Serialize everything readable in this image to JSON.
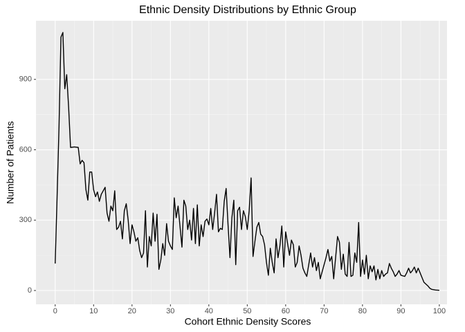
{
  "chart_data": {
    "type": "line",
    "title": "Ethnic Density Distributions by Ethnic Group",
    "x_label": "Cohort Ethnic Density Scores",
    "y_label": "Number of Patients",
    "x": [
      0,
      0.5,
      1,
      1.5,
      2,
      2.5,
      3,
      3.5,
      4,
      5,
      6,
      6.5,
      7,
      7.5,
      8,
      8.5,
      9,
      9.5,
      10,
      10.5,
      11,
      11.5,
      12,
      13,
      13.5,
      14,
      14.5,
      15,
      15.5,
      16,
      16.5,
      17,
      17.5,
      18,
      18.5,
      19,
      19.5,
      20,
      20.5,
      21,
      21.5,
      22,
      22.5,
      23,
      23.5,
      24,
      24.5,
      25,
      25.5,
      26,
      26.5,
      27,
      27.5,
      28,
      28.5,
      29,
      29.5,
      30,
      30.5,
      31,
      31.5,
      32,
      33,
      33.5,
      34,
      34.5,
      35,
      35.5,
      36,
      36.5,
      37,
      37.5,
      38,
      38.5,
      39,
      39.5,
      40,
      40.5,
      41,
      41.5,
      42,
      42.5,
      43,
      43.5,
      44,
      44.5,
      45,
      45.5,
      46,
      46.5,
      47,
      47.5,
      48,
      48.5,
      49,
      49.5,
      50,
      50.5,
      51,
      51.5,
      52,
      52.5,
      53,
      53.5,
      54,
      54.5,
      55,
      55.5,
      56,
      56.5,
      57,
      57.5,
      58,
      58.5,
      59,
      59.5,
      60,
      60.5,
      61,
      61.5,
      62,
      62.5,
      63,
      63.5,
      64,
      64.5,
      65,
      65.5,
      66,
      66.5,
      67,
      67.5,
      68,
      68.5,
      69,
      69.5,
      70,
      70.5,
      71,
      71.5,
      72,
      72.5,
      73,
      73.5,
      74,
      74.5,
      75,
      75.5,
      76,
      76.5,
      77,
      77.5,
      78,
      78.5,
      79,
      79.5,
      80,
      80.5,
      81,
      81.5,
      82,
      82.5,
      83,
      83.5,
      84,
      84.5,
      85,
      85.5,
      86,
      86.5,
      87,
      87.5,
      88,
      88.5,
      89,
      89.5,
      90,
      91,
      91.5,
      92,
      92.5,
      93,
      93.5,
      94,
      94.5,
      95,
      95.5,
      96,
      97,
      97.5,
      98,
      99,
      100
    ],
    "values": [
      115,
      400,
      700,
      1080,
      1100,
      860,
      920,
      780,
      610,
      612,
      610,
      540,
      555,
      545,
      430,
      385,
      505,
      505,
      430,
      400,
      420,
      380,
      410,
      440,
      330,
      295,
      360,
      340,
      425,
      260,
      270,
      295,
      220,
      340,
      370,
      300,
      200,
      280,
      250,
      210,
      225,
      170,
      140,
      160,
      340,
      100,
      230,
      190,
      330,
      210,
      325,
      90,
      130,
      200,
      150,
      285,
      210,
      190,
      175,
      395,
      310,
      360,
      185,
      385,
      360,
      260,
      300,
      215,
      350,
      200,
      365,
      190,
      280,
      230,
      295,
      305,
      280,
      350,
      260,
      330,
      410,
      250,
      265,
      260,
      380,
      435,
      280,
      140,
      310,
      385,
      110,
      340,
      355,
      260,
      340,
      315,
      260,
      340,
      480,
      145,
      210,
      270,
      290,
      240,
      230,
      195,
      120,
      65,
      180,
      120,
      75,
      220,
      140,
      190,
      275,
      100,
      250,
      200,
      150,
      215,
      195,
      100,
      120,
      190,
      150,
      95,
      75,
      60,
      110,
      160,
      100,
      140,
      85,
      120,
      50,
      80,
      110,
      140,
      175,
      125,
      145,
      50,
      140,
      230,
      205,
      90,
      155,
      70,
      60,
      205,
      60,
      65,
      160,
      120,
      290,
      60,
      130,
      70,
      150,
      50,
      105,
      80,
      105,
      45,
      90,
      50,
      85,
      60,
      70,
      75,
      115,
      95,
      80,
      60,
      70,
      85,
      65,
      60,
      75,
      95,
      75,
      85,
      100,
      75,
      95,
      75,
      55,
      35,
      20,
      10,
      5,
      2,
      1
    ],
    "color": "#000000",
    "xlim": [
      -5,
      102
    ],
    "ylim": [
      -59,
      1150
    ],
    "xticks": [
      0,
      10,
      20,
      30,
      40,
      50,
      60,
      70,
      80,
      90,
      100
    ],
    "yticks": [
      0,
      300,
      600,
      900
    ],
    "grid": true
  }
}
